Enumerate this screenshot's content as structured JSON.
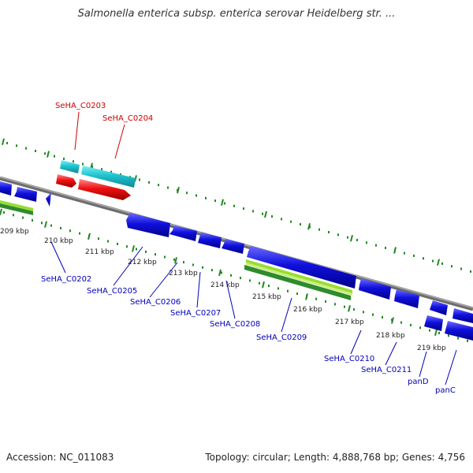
{
  "title": "Salmonella enterica subsp. enterica serovar Heidelberg str. ...",
  "footer": {
    "accession": "Accession: NC_011083",
    "topology": "Topology: circular; Length: 4,888,768 bp; Genes: 4,756"
  },
  "colors": {
    "backbone": "#888888",
    "forward_cds": "#1ec4d0",
    "forward_feature": "#ee1111",
    "reverse_cds": "#1010dd",
    "gc_light": "#99dd33",
    "gc_dark": "#2e8b2e",
    "ticks": "#228822",
    "label_forward": "#cc0000",
    "label_reverse": "#0000bb"
  },
  "tick_labels": [
    "209 kbp",
    "210 kbp",
    "211 kbp",
    "212 kbp",
    "213 kbp",
    "214 kbp",
    "215 kbp",
    "216 kbp",
    "217 kbp",
    "218 kbp",
    "219 kbp"
  ],
  "forward_genes": [
    "SeHA_C0203",
    "SeHA_C0204"
  ],
  "reverse_genes": [
    "SeHA_C0202",
    "SeHA_C0205",
    "SeHA_C0206",
    "SeHA_C0207",
    "SeHA_C0208",
    "SeHA_C0209",
    "SeHA_C0210",
    "SeHA_C0211",
    "panD",
    "panC"
  ]
}
